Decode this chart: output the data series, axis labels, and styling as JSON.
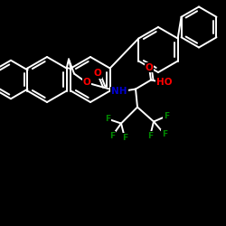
{
  "background": "#000000",
  "bond_color": "#ffffff",
  "bond_lw": 1.4,
  "atom_colors": {
    "O": "#ff0000",
    "N": "#0000cd",
    "F": "#008800",
    "H": "#ffffff",
    "C": "#ffffff"
  },
  "font_size_atom": 7.5,
  "font_size_small": 6.5
}
